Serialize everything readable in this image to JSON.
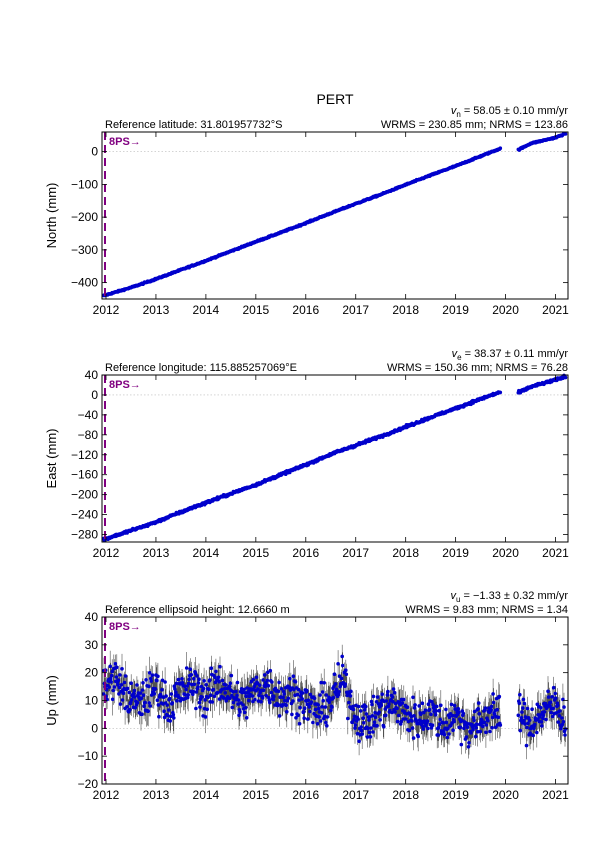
{
  "title": "PERT",
  "start_year": 2011.92,
  "end_year": 2021.25,
  "annotation_label": "8PS",
  "annotation_arrow": "→",
  "annotation_color": "#800080",
  "data_color": "#0000cc",
  "error_color": "#505050",
  "chart_data": [
    {
      "type": "scatter",
      "component": "north",
      "ylabel": "North (mm)",
      "ref_text": "Reference latitude: 31.801957732°S",
      "rate_var": "v",
      "rate_sub": "n",
      "rate_value": " = 58.05 ± 0.10 mm/yr",
      "stats_text": "WRMS = 230.85 mm; NRMS = 123.86",
      "ylim": [
        -450,
        60
      ],
      "yticks": [
        -400,
        -300,
        -200,
        -100,
        0
      ],
      "ytick_labels": [
        "−400",
        "−300",
        "−200",
        "−100",
        "0"
      ],
      "xticks": [
        2012,
        2013,
        2014,
        2015,
        2016,
        2017,
        2018,
        2019,
        2020,
        2021
      ],
      "xtick_labels": [
        "2012",
        "2013",
        "2014",
        "2015",
        "2016",
        "2017",
        "2018",
        "2019",
        "2020",
        "2021"
      ],
      "x": [
        2011.95,
        2012.5,
        2013,
        2013.5,
        2014,
        2014.5,
        2015,
        2015.5,
        2016,
        2016.5,
        2017,
        2017.5,
        2018,
        2018.5,
        2019,
        2019.5,
        2019.9,
        2020.25,
        2020.5,
        2021,
        2021.2
      ],
      "y": [
        -440,
        -415,
        -389,
        -361,
        -333,
        -304,
        -275,
        -247,
        -218,
        -188,
        -159,
        -131,
        -101,
        -72,
        -44,
        -14,
        10,
        5,
        25,
        43,
        55
      ],
      "gap": [
        2019.9,
        2020.25
      ],
      "break_x": 2011.98,
      "noise": 1.5,
      "err": 0.6,
      "grid": "dotted-zero-line"
    },
    {
      "type": "scatter",
      "component": "east",
      "ylabel": "East (mm)",
      "ref_text": "Reference longitude: 115.885257069°E",
      "rate_var": "v",
      "rate_sub": "e",
      "rate_value": " = 38.37 ± 0.11 mm/yr",
      "stats_text": "WRMS = 150.36 mm; NRMS = 76.28",
      "ylim": [
        -295,
        40
      ],
      "yticks": [
        -280,
        -240,
        -200,
        -160,
        -120,
        -80,
        -40,
        0,
        40
      ],
      "ytick_labels": [
        "−280",
        "−240",
        "−200",
        "−160",
        "−120",
        "−80",
        "−40",
        "0",
        "40"
      ],
      "xticks": [
        2012,
        2013,
        2014,
        2015,
        2016,
        2017,
        2018,
        2019,
        2020,
        2021
      ],
      "xtick_labels": [
        "2012",
        "2013",
        "2014",
        "2015",
        "2016",
        "2017",
        "2018",
        "2019",
        "2020",
        "2021"
      ],
      "x": [
        2011.95,
        2012.5,
        2013,
        2013.5,
        2014,
        2014.5,
        2015,
        2015.5,
        2016,
        2016.5,
        2017,
        2017.5,
        2018,
        2018.5,
        2019,
        2019.5,
        2019.9,
        2020.25,
        2020.5,
        2021,
        2021.2
      ],
      "y": [
        -290,
        -272,
        -255,
        -235,
        -216,
        -198,
        -180,
        -160,
        -140,
        -119,
        -101,
        -83,
        -64,
        -45,
        -27,
        -8,
        6,
        4,
        16,
        30,
        37
      ],
      "gap": [
        2019.9,
        2020.25
      ],
      "break_x": 2011.98,
      "noise": 1.8,
      "err": 0.8,
      "grid": "dotted-zero-line"
    },
    {
      "type": "scatter",
      "component": "up",
      "ylabel": "Up (mm)",
      "ref_text": "Reference ellipsoid height: 12.6660 m",
      "rate_var": "v",
      "rate_sub": "u",
      "rate_value": " = −1.33 ± 0.32 mm/yr",
      "stats_text": "WRMS = 9.83 mm; NRMS = 1.34",
      "ylim": [
        -20,
        40
      ],
      "yticks": [
        -20,
        -10,
        0,
        10,
        20,
        30,
        40
      ],
      "ytick_labels": [
        "−20",
        "−10",
        "0",
        "10",
        "20",
        "30",
        "40"
      ],
      "xticks": [
        2012,
        2013,
        2014,
        2015,
        2016,
        2017,
        2018,
        2019,
        2020,
        2021
      ],
      "xtick_labels": [
        "2012",
        "2013",
        "2014",
        "2015",
        "2016",
        "2017",
        "2018",
        "2019",
        "2020",
        "2021"
      ],
      "x": [
        2011.95,
        2012.2,
        2012.4,
        2012.6,
        2012.8,
        2013,
        2013.25,
        2013.5,
        2013.75,
        2014,
        2014.25,
        2014.5,
        2014.75,
        2015,
        2015.25,
        2015.5,
        2015.75,
        2016,
        2016.25,
        2016.5,
        2016.75,
        2017,
        2017.25,
        2017.5,
        2017.75,
        2018,
        2018.25,
        2018.5,
        2018.75,
        2019,
        2019.25,
        2019.5,
        2019.75,
        2019.9,
        2020.25,
        2020.45,
        2020.7,
        2021,
        2021.2
      ],
      "y": [
        16,
        18,
        12,
        9,
        11,
        15,
        8,
        13,
        16,
        11,
        17,
        12,
        9,
        14,
        16,
        11,
        13,
        9,
        6,
        10,
        18,
        4,
        2,
        7,
        9,
        5,
        3,
        6,
        1,
        5,
        0,
        2,
        7,
        3,
        7,
        1,
        5,
        9,
        2
      ],
      "gap": [
        2019.9,
        2020.25
      ],
      "break_x": 2011.98,
      "noise": 5,
      "err": 4.5,
      "grid": "dotted-zero-line"
    }
  ]
}
